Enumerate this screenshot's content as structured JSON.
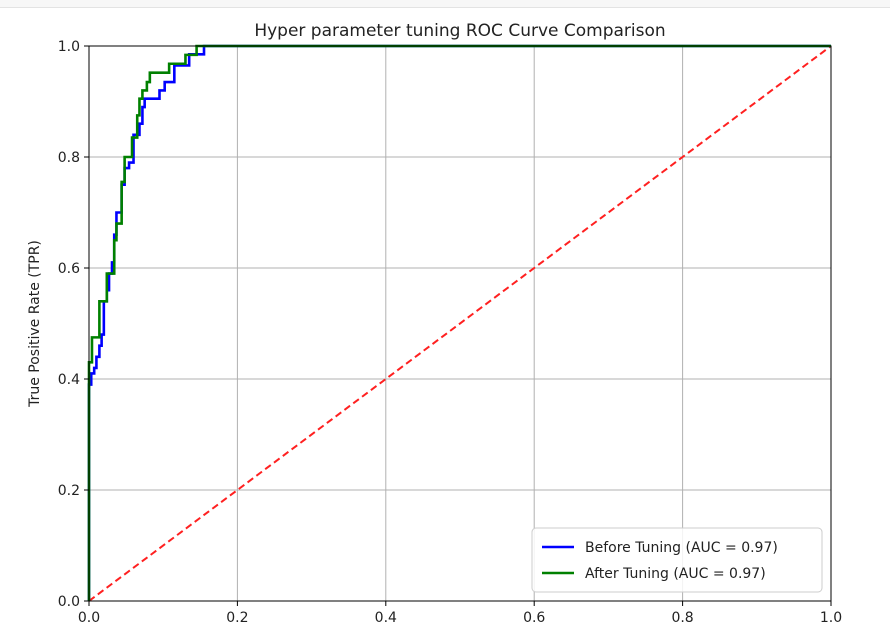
{
  "chart_data": {
    "type": "line",
    "title": "Hyper parameter tuning ROC Curve Comparison",
    "xlabel": "",
    "ylabel": "True Positive Rate (TPR)",
    "xlim": [
      0,
      1
    ],
    "ylim": [
      0,
      1
    ],
    "xticks": [
      "0.0",
      "0.2",
      "0.4",
      "0.6",
      "0.8",
      "1.0"
    ],
    "yticks": [
      "0.0",
      "0.2",
      "0.4",
      "0.6",
      "0.8",
      "1.0"
    ],
    "grid": true,
    "legend_position": "lower-right",
    "series": [
      {
        "name": "Before Tuning (AUC = 0.97)",
        "color": "#0000ff",
        "style": "solid",
        "points": [
          [
            0,
            0
          ],
          [
            0,
            0.39
          ],
          [
            0.003,
            0.39
          ],
          [
            0.003,
            0.41
          ],
          [
            0.007,
            0.41
          ],
          [
            0.007,
            0.42
          ],
          [
            0.01,
            0.42
          ],
          [
            0.01,
            0.44
          ],
          [
            0.014,
            0.44
          ],
          [
            0.014,
            0.46
          ],
          [
            0.017,
            0.46
          ],
          [
            0.017,
            0.48
          ],
          [
            0.02,
            0.48
          ],
          [
            0.02,
            0.54
          ],
          [
            0.024,
            0.54
          ],
          [
            0.024,
            0.56
          ],
          [
            0.027,
            0.56
          ],
          [
            0.027,
            0.59
          ],
          [
            0.031,
            0.59
          ],
          [
            0.031,
            0.61
          ],
          [
            0.034,
            0.61
          ],
          [
            0.034,
            0.66
          ],
          [
            0.037,
            0.66
          ],
          [
            0.037,
            0.7
          ],
          [
            0.041,
            0.7
          ],
          [
            0.044,
            0.7
          ],
          [
            0.044,
            0.75
          ],
          [
            0.048,
            0.75
          ],
          [
            0.048,
            0.78
          ],
          [
            0.054,
            0.78
          ],
          [
            0.054,
            0.79
          ],
          [
            0.06,
            0.79
          ],
          [
            0.06,
            0.84
          ],
          [
            0.068,
            0.84
          ],
          [
            0.068,
            0.86
          ],
          [
            0.072,
            0.86
          ],
          [
            0.072,
            0.89
          ],
          [
            0.075,
            0.89
          ],
          [
            0.075,
            0.905
          ],
          [
            0.095,
            0.905
          ],
          [
            0.095,
            0.92
          ],
          [
            0.102,
            0.92
          ],
          [
            0.102,
            0.935
          ],
          [
            0.115,
            0.935
          ],
          [
            0.115,
            0.965
          ],
          [
            0.135,
            0.965
          ],
          [
            0.135,
            0.985
          ],
          [
            0.155,
            0.985
          ],
          [
            0.155,
            1.0
          ],
          [
            1.0,
            1.0
          ]
        ]
      },
      {
        "name": "After Tuning (AUC = 0.97)",
        "color": "#008000",
        "style": "solid",
        "points": [
          [
            0,
            0
          ],
          [
            0,
            0.43
          ],
          [
            0.004,
            0.43
          ],
          [
            0.004,
            0.475
          ],
          [
            0.014,
            0.475
          ],
          [
            0.014,
            0.54
          ],
          [
            0.024,
            0.54
          ],
          [
            0.024,
            0.59
          ],
          [
            0.034,
            0.59
          ],
          [
            0.034,
            0.65
          ],
          [
            0.037,
            0.65
          ],
          [
            0.037,
            0.68
          ],
          [
            0.044,
            0.68
          ],
          [
            0.044,
            0.755
          ],
          [
            0.048,
            0.755
          ],
          [
            0.048,
            0.8
          ],
          [
            0.058,
            0.8
          ],
          [
            0.058,
            0.835
          ],
          [
            0.065,
            0.835
          ],
          [
            0.065,
            0.875
          ],
          [
            0.068,
            0.875
          ],
          [
            0.068,
            0.905
          ],
          [
            0.072,
            0.905
          ],
          [
            0.072,
            0.92
          ],
          [
            0.078,
            0.92
          ],
          [
            0.078,
            0.935
          ],
          [
            0.082,
            0.935
          ],
          [
            0.082,
            0.952
          ],
          [
            0.108,
            0.952
          ],
          [
            0.108,
            0.968
          ],
          [
            0.13,
            0.968
          ],
          [
            0.13,
            0.984
          ],
          [
            0.145,
            0.984
          ],
          [
            0.145,
            1.0
          ],
          [
            1.0,
            1.0
          ]
        ]
      },
      {
        "name": "",
        "color": "#ff2020",
        "style": "dashed",
        "points": [
          [
            0,
            0
          ],
          [
            1,
            1
          ]
        ]
      }
    ]
  }
}
